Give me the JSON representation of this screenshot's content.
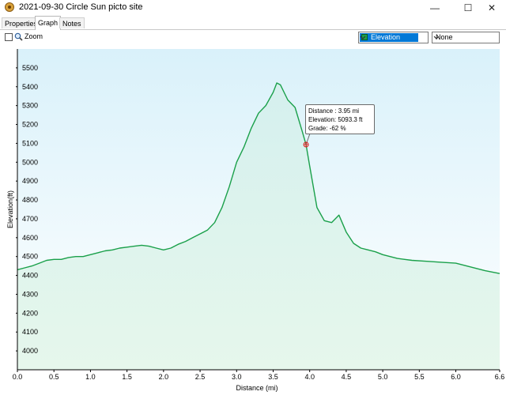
{
  "window": {
    "title": "2021-09-30 Circle Sun picto site",
    "minimize_glyph": "—",
    "maximize_glyph": "☐",
    "close_glyph": "✕"
  },
  "tabs": [
    {
      "label": "Properties",
      "active": false
    },
    {
      "label": "Graph",
      "active": true
    },
    {
      "label": "Notes",
      "active": false
    }
  ],
  "toolbar": {
    "zoom_label": "Zoom",
    "zoom_checked": false,
    "primary_series": "Elevation",
    "secondary_series": "None"
  },
  "tooltip": {
    "distance": "Distance : 3.95 mi",
    "elevation": "Elevation: 5093.3 ft",
    "grade": "Grade: -62 %"
  },
  "colors": {
    "series_line": "#1aa04a",
    "fill_top": "#cfeff0",
    "fill_bottom": "#e3f6ea",
    "plot_bg_top": "#d9f1fa",
    "plot_bg_bottom": "#ffffff",
    "selection": "#0078d7"
  },
  "chart_data": {
    "type": "area",
    "title": "",
    "xlabel": "Distance  (mi)",
    "ylabel": "Elevation(ft)",
    "xlim": [
      0.0,
      6.6
    ],
    "ylim": [
      3900,
      5600
    ],
    "x_ticks": [
      "0.0",
      "0.5",
      "1.0",
      "1.5",
      "2.0",
      "2.5",
      "3.0",
      "3.5",
      "4.0",
      "4.5",
      "5.0",
      "5.5",
      "6.0",
      "6.6"
    ],
    "x_tick_values": [
      0.0,
      0.5,
      1.0,
      1.5,
      2.0,
      2.5,
      3.0,
      3.5,
      4.0,
      4.5,
      5.0,
      5.5,
      6.0,
      6.6
    ],
    "y_ticks": [
      "4000",
      "4100",
      "4200",
      "4300",
      "4400",
      "4500",
      "4600",
      "4700",
      "4800",
      "4900",
      "5000",
      "5100",
      "5200",
      "5300",
      "5400",
      "5500"
    ],
    "y_tick_values": [
      4000,
      4100,
      4200,
      4300,
      4400,
      4500,
      4600,
      4700,
      4800,
      4900,
      5000,
      5100,
      5200,
      5300,
      5400,
      5500
    ],
    "grid": false,
    "cursor": {
      "x": 3.95,
      "y": 5093.3
    },
    "series": [
      {
        "x": [
          0.0,
          0.1,
          0.2,
          0.3,
          0.4,
          0.5,
          0.6,
          0.7,
          0.8,
          0.9,
          1.0,
          1.1,
          1.2,
          1.3,
          1.4,
          1.5,
          1.6,
          1.7,
          1.8,
          1.9,
          2.0,
          2.1,
          2.2,
          2.3,
          2.4,
          2.5,
          2.6,
          2.7,
          2.8,
          2.9,
          3.0,
          3.1,
          3.2,
          3.3,
          3.4,
          3.5,
          3.55,
          3.6,
          3.7,
          3.8,
          3.9,
          3.95,
          4.0,
          4.1,
          4.2,
          4.3,
          4.4,
          4.5,
          4.6,
          4.7,
          4.8,
          4.9,
          5.0,
          5.2,
          5.4,
          5.6,
          5.8,
          6.0,
          6.2,
          6.4,
          6.6
        ],
        "y": [
          4430,
          4440,
          4450,
          4465,
          4480,
          4485,
          4485,
          4495,
          4500,
          4500,
          4510,
          4520,
          4530,
          4535,
          4545,
          4550,
          4555,
          4560,
          4555,
          4545,
          4535,
          4545,
          4565,
          4580,
          4600,
          4620,
          4640,
          4680,
          4760,
          4870,
          5000,
          5080,
          5180,
          5260,
          5300,
          5370,
          5420,
          5410,
          5330,
          5290,
          5160,
          5093,
          4980,
          4760,
          4690,
          4680,
          4720,
          4630,
          4570,
          4545,
          4535,
          4525,
          4510,
          4490,
          4480,
          4475,
          4470,
          4465,
          4445,
          4425,
          4410
        ]
      }
    ]
  }
}
